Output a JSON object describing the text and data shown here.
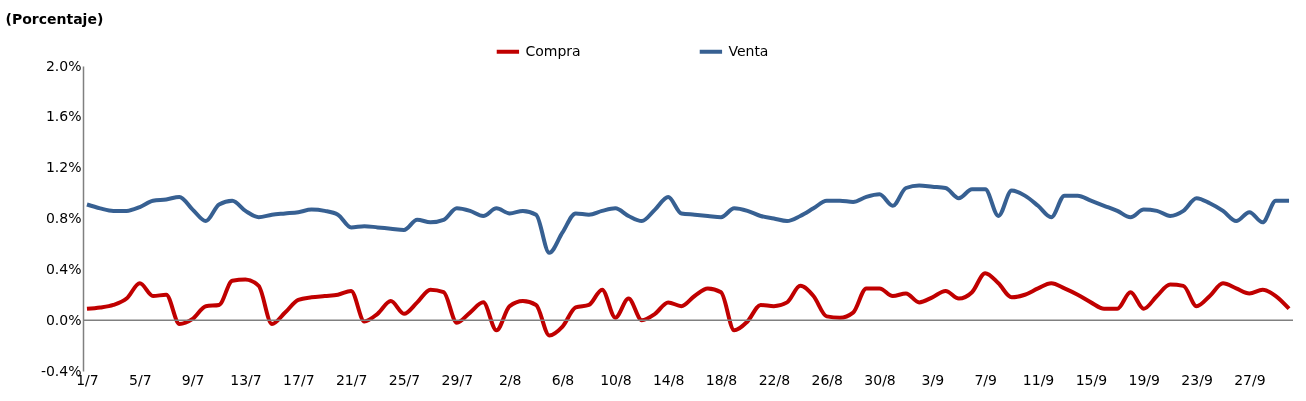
{
  "chart_data": {
    "type": "line",
    "ylabel": "(Porcentaje)",
    "categories": [
      "1/7",
      null,
      null,
      null,
      "5/7",
      null,
      null,
      null,
      "9/7",
      null,
      null,
      null,
      "13/7",
      null,
      null,
      null,
      "17/7",
      null,
      null,
      null,
      "21/7",
      null,
      null,
      null,
      "25/7",
      null,
      null,
      null,
      "29/7",
      null,
      null,
      null,
      "2/8",
      null,
      null,
      null,
      "6/8",
      null,
      null,
      null,
      "10/8",
      null,
      null,
      null,
      "14/8",
      null,
      null,
      null,
      "18/8",
      null,
      null,
      null,
      "22/8",
      null,
      null,
      null,
      "26/8",
      null,
      null,
      null,
      "30/8",
      null,
      null,
      null,
      "3/9",
      null,
      null,
      null,
      "7/9",
      null,
      null,
      null,
      "11/9",
      null,
      null,
      null,
      "15/9",
      null,
      null,
      null,
      "19/9",
      null,
      null,
      null,
      "23/9",
      null,
      null,
      null,
      "27/9",
      null,
      null,
      null
    ],
    "series": [
      {
        "name": "Compra",
        "color": "#c00000",
        "values": [
          0.09,
          0.1,
          0.12,
          0.17,
          0.29,
          0.19,
          0.2,
          -0.03,
          0.01,
          0.11,
          0.12,
          0.31,
          0.32,
          0.27,
          -0.03,
          0.06,
          0.16,
          0.18,
          0.19,
          0.2,
          0.23,
          -0.01,
          0.05,
          0.15,
          0.05,
          0.14,
          0.24,
          0.22,
          -0.02,
          0.06,
          0.14,
          -0.08,
          0.11,
          0.15,
          0.12,
          -0.12,
          -0.05,
          0.1,
          0.12,
          0.24,
          0.02,
          0.17,
          0.0,
          0.05,
          0.14,
          0.11,
          0.19,
          0.25,
          0.22,
          -0.08,
          -0.01,
          0.12,
          0.11,
          0.14,
          0.27,
          0.19,
          0.03,
          0.02,
          0.06,
          0.25,
          0.25,
          0.19,
          0.21,
          0.14,
          0.18,
          0.23,
          0.17,
          0.22,
          0.37,
          0.29,
          0.18,
          0.2,
          0.25,
          0.29,
          0.25,
          0.2,
          0.14,
          0.09,
          0.09,
          0.22,
          0.09,
          0.19,
          0.28,
          0.27,
          0.11,
          0.19,
          0.29,
          0.25,
          0.21,
          0.24,
          0.19,
          0.09
        ]
      },
      {
        "name": "Venta",
        "color": "#376092",
        "values": [
          0.91,
          0.88,
          0.86,
          0.86,
          0.89,
          0.94,
          0.95,
          0.97,
          0.87,
          0.78,
          0.91,
          0.94,
          0.86,
          0.81,
          0.83,
          0.84,
          0.85,
          0.87,
          0.86,
          0.83,
          0.73,
          0.74,
          0.73,
          0.72,
          0.71,
          0.79,
          0.77,
          0.79,
          0.88,
          0.86,
          0.82,
          0.88,
          0.84,
          0.86,
          0.83,
          0.53,
          0.69,
          0.84,
          0.83,
          0.86,
          0.88,
          0.82,
          0.78,
          0.87,
          0.97,
          0.84,
          0.83,
          0.82,
          0.81,
          0.88,
          0.86,
          0.82,
          0.8,
          0.78,
          0.82,
          0.88,
          0.94,
          0.94,
          0.93,
          0.97,
          0.99,
          0.9,
          1.04,
          1.06,
          1.05,
          1.04,
          0.96,
          1.03,
          1.03,
          0.82,
          1.02,
          0.98,
          0.9,
          0.81,
          0.98,
          0.98,
          0.94,
          0.9,
          0.86,
          0.81,
          0.87,
          0.86,
          0.82,
          0.86,
          0.96,
          0.92,
          0.86,
          0.78,
          0.85,
          0.77,
          0.94,
          0.94
        ]
      }
    ],
    "ylim": [
      -0.4,
      2.0
    ],
    "yticks": [
      {
        "value": -0.4,
        "label": "-0.4%"
      },
      {
        "value": 0.0,
        "label": "0.0%"
      },
      {
        "value": 0.4,
        "label": "0.4%"
      },
      {
        "value": 0.8,
        "label": "0.8%"
      },
      {
        "value": 1.2,
        "label": "1.2%"
      },
      {
        "value": 1.6,
        "label": "1.6%"
      },
      {
        "value": 2.0,
        "label": "2.0%"
      }
    ],
    "ref_lines": [
      {
        "axis": "y",
        "value": 0,
        "color": "#808080"
      }
    ],
    "legend": "top",
    "grid": false,
    "line_style": "solid",
    "marker": "none"
  }
}
